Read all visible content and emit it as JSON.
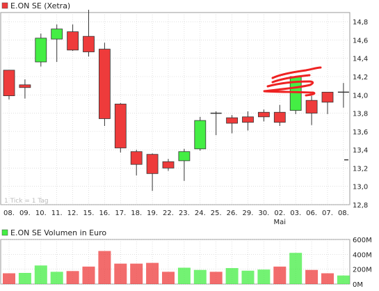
{
  "colors": {
    "up": "#44ee44",
    "down": "#ee3b3b",
    "frame": "#999999",
    "grid": "#cccccc",
    "text": "#222222",
    "scribble": "#ee2222"
  },
  "chart_data": [
    {
      "type": "candlestick",
      "title": "E.ON SE (Xetra)",
      "title_legend_color": "#ee3b3b",
      "watermark": "1 Tick = 1 Tag",
      "x_labels": [
        "08.",
        "09.",
        "10.",
        "11.",
        "12.",
        "15.",
        "16.",
        "17.",
        "18.",
        "19.",
        "22.",
        "23.",
        "24.",
        "25.",
        "26.",
        "29.",
        "30.",
        "02.",
        "03.",
        "06.",
        "07.",
        "08."
      ],
      "x_sublabel": {
        "index": 17,
        "text": "Mai"
      },
      "y_ticks": [
        "12,8",
        "13,0",
        "13,2",
        "13,4",
        "13,6",
        "13,8",
        "14,0",
        "14,2",
        "14,4",
        "14,6",
        "14,8"
      ],
      "y_tick_values": [
        12.8,
        13.0,
        13.2,
        13.4,
        13.6,
        13.8,
        14.0,
        14.2,
        14.4,
        14.6,
        14.8
      ],
      "ylim": [
        12.8,
        14.9
      ],
      "grid": true,
      "candles": [
        {
          "x": "08.",
          "open": 14.27,
          "close": 13.99,
          "high": 14.27,
          "low": 13.95
        },
        {
          "x": "09.",
          "open": 14.11,
          "close": 14.08,
          "high": 14.17,
          "low": 13.96
        },
        {
          "x": "10.",
          "open": 14.36,
          "close": 14.62,
          "high": 14.67,
          "low": 14.31
        },
        {
          "x": "11.",
          "open": 14.61,
          "close": 14.72,
          "high": 14.77,
          "low": 14.36
        },
        {
          "x": "12.",
          "open": 14.69,
          "close": 14.49,
          "high": 14.77,
          "low": 14.48
        },
        {
          "x": "15.",
          "open": 14.64,
          "close": 14.47,
          "high": 14.93,
          "low": 14.42
        },
        {
          "x": "16.",
          "open": 14.5,
          "close": 13.74,
          "high": 14.57,
          "low": 13.66
        },
        {
          "x": "17.",
          "open": 13.9,
          "close": 13.42,
          "high": 13.91,
          "low": 13.37
        },
        {
          "x": "18.",
          "open": 13.38,
          "close": 13.24,
          "high": 13.4,
          "low": 13.12
        },
        {
          "x": "19.",
          "open": 13.35,
          "close": 13.14,
          "high": 13.36,
          "low": 12.95
        },
        {
          "x": "22.",
          "open": 13.27,
          "close": 13.2,
          "high": 13.3,
          "low": 13.17
        },
        {
          "x": "23.",
          "open": 13.28,
          "close": 13.38,
          "high": 13.41,
          "low": 13.06
        },
        {
          "x": "24.",
          "open": 13.41,
          "close": 13.72,
          "high": 13.76,
          "low": 13.39
        },
        {
          "x": "25.",
          "open": 13.8,
          "close": 13.79,
          "high": 13.82,
          "low": 13.56
        },
        {
          "x": "26.",
          "open": 13.75,
          "close": 13.69,
          "high": 13.78,
          "low": 13.58
        },
        {
          "x": "29.",
          "open": 13.76,
          "close": 13.7,
          "high": 13.82,
          "low": 13.61
        },
        {
          "x": "30.",
          "open": 13.81,
          "close": 13.76,
          "high": 13.84,
          "low": 13.71
        },
        {
          "x": "02.",
          "open": 13.81,
          "close": 13.7,
          "high": 13.89,
          "low": 13.66
        },
        {
          "x": "03.",
          "open": 13.83,
          "close": 14.2,
          "high": 14.2,
          "low": 13.79
        },
        {
          "x": "06.",
          "open": 13.94,
          "close": 13.8,
          "high": 13.99,
          "low": 13.67
        },
        {
          "x": "07.",
          "open": 14.03,
          "close": 13.92,
          "high": 14.03,
          "low": 13.79
        },
        {
          "x": "08.",
          "open": 14.03,
          "close": 14.03,
          "high": 14.13,
          "low": 13.86
        }
      ],
      "extra_marker": {
        "value": 13.29,
        "note": "short dash at right edge"
      },
      "annotation": "red hand-drawn scribble around 14,0–14,3 over 02.–03."
    },
    {
      "type": "bar",
      "title": "E.ON SE Volumen in Euro",
      "title_legend_color": "#44ee44",
      "y_ticks": [
        "0M",
        "200M",
        "400M",
        "600M"
      ],
      "y_tick_values": [
        0,
        200,
        400,
        600
      ],
      "ylim": [
        0,
        600
      ],
      "grid": true,
      "categories": [
        "08.",
        "09.",
        "10.",
        "11.",
        "12.",
        "15.",
        "16.",
        "17.",
        "18.",
        "19.",
        "22.",
        "23.",
        "24.",
        "25.",
        "26.",
        "29.",
        "30.",
        "02.",
        "03.",
        "06.",
        "07.",
        "08."
      ],
      "values": [
        145,
        150,
        250,
        165,
        175,
        235,
        445,
        275,
        275,
        285,
        165,
        220,
        190,
        165,
        215,
        180,
        195,
        235,
        420,
        190,
        145,
        115
      ],
      "colors": [
        "down",
        "up",
        "up",
        "up",
        "down",
        "down",
        "down",
        "down",
        "down",
        "down",
        "down",
        "up",
        "up",
        "down",
        "up",
        "up",
        "up",
        "down",
        "up",
        "down",
        "down",
        "up"
      ]
    }
  ]
}
